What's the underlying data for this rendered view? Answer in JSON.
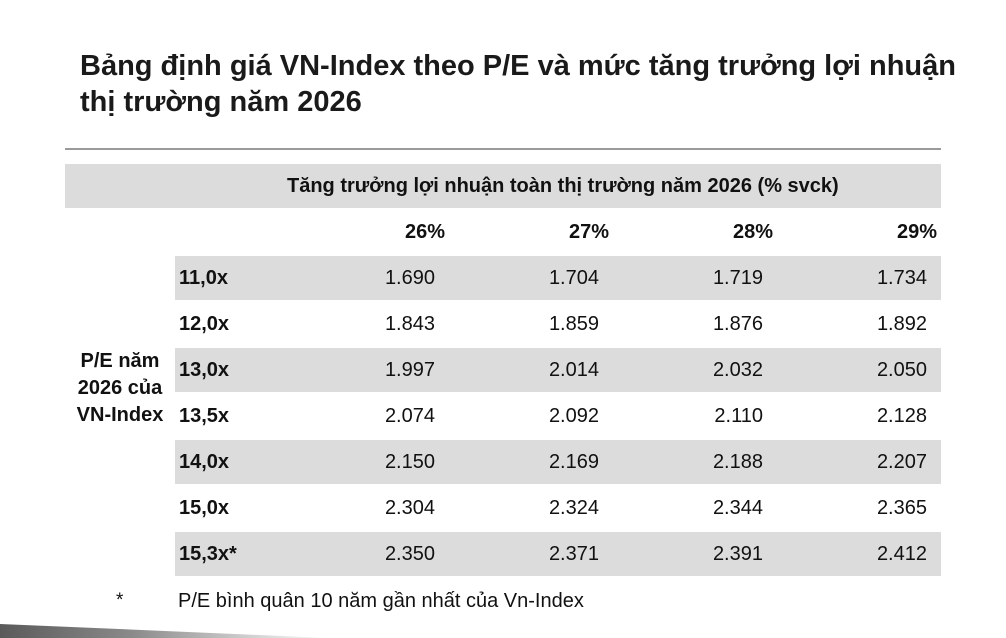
{
  "title": "Bảng định giá VN-Index theo P/E và mức tăng trưởng lợi nhuận thị trường năm 2026",
  "table": {
    "group_header": "Tăng trưởng lợi nhuận toàn thị trường năm 2026 (% svck)",
    "row_group_label": "P/E năm 2026 của VN-Index",
    "columns": [
      "26%",
      "27%",
      "28%",
      "29%"
    ],
    "rows": [
      {
        "pe": "11,0x",
        "values": [
          "1.690",
          "1.704",
          "1.719",
          "1.734"
        ]
      },
      {
        "pe": "12,0x",
        "values": [
          "1.843",
          "1.859",
          "1.876",
          "1.892"
        ]
      },
      {
        "pe": "13,0x",
        "values": [
          "1.997",
          "2.014",
          "2.032",
          "2.050"
        ]
      },
      {
        "pe": "13,5x",
        "values": [
          "2.074",
          "2.092",
          "2.110",
          "2.128"
        ]
      },
      {
        "pe": "14,0x",
        "values": [
          "2.150",
          "2.169",
          "2.188",
          "2.207"
        ]
      },
      {
        "pe": "15,0x",
        "values": [
          "2.304",
          "2.324",
          "2.344",
          "2.365"
        ]
      },
      {
        "pe": "15,3x*",
        "values": [
          "2.350",
          "2.371",
          "2.391",
          "2.412"
        ]
      }
    ]
  },
  "footnote": {
    "marker": "*",
    "text": "P/E bình quân 10 năm gần nhất của Vn-Index"
  },
  "colors": {
    "band": "#dcdcdc",
    "rule": "#9a9a9a"
  }
}
